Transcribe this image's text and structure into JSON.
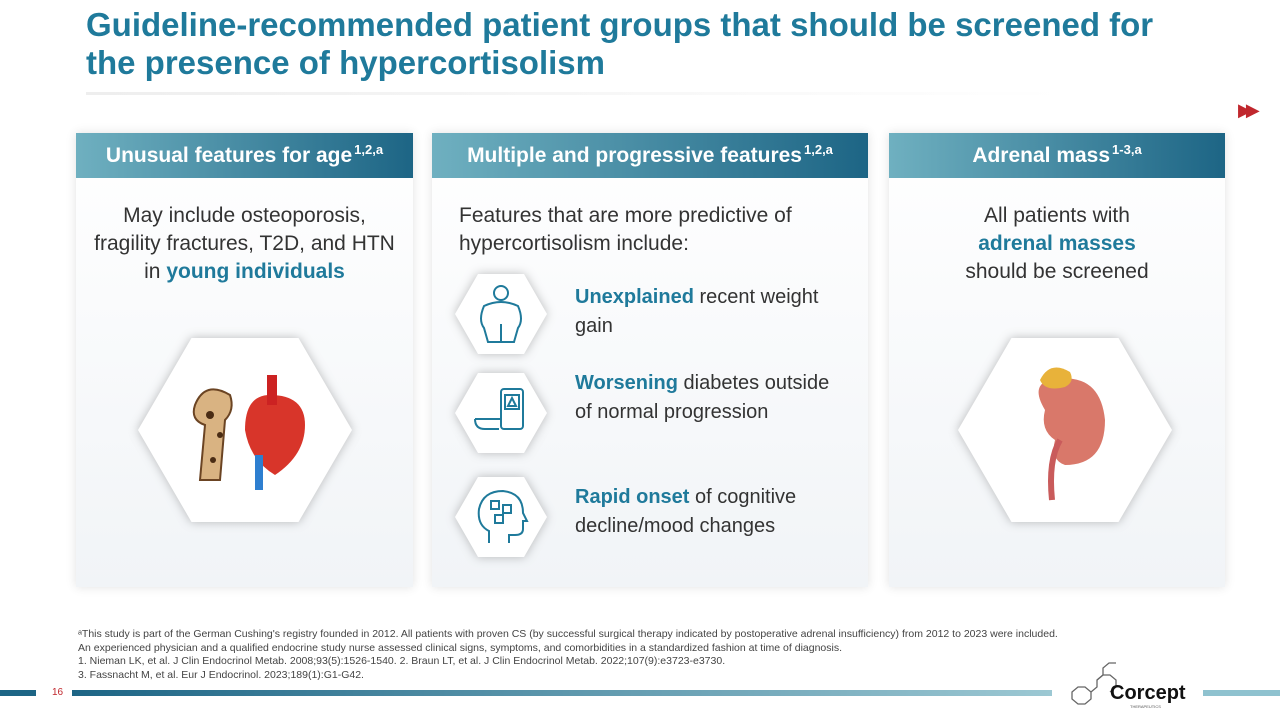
{
  "title": "Guideline-recommended patient groups that should be screened for the presence of hypercortisolism",
  "next_icon": "fast-forward-icon",
  "cards": [
    {
      "header": "Unusual features for age",
      "sup": "1,2,a",
      "text_before": "May include osteoporosis, fragility fractures, T2D, and HTN in ",
      "text_highlight": "young individuals",
      "image": "bone-and-heart-icon"
    },
    {
      "header": "Multiple and progressive features",
      "sup": "1,2,a",
      "intro": "Features that are more predictive of hypercortisolism include:",
      "features": [
        {
          "highlight": "Unexplained",
          "rest": " recent weight gain",
          "icon": "weight-gain-person-icon"
        },
        {
          "highlight": "Worsening",
          "rest": " diabetes outside of normal progression",
          "icon": "glucose-meter-icon"
        },
        {
          "highlight": "Rapid onset",
          "rest": " of cognitive decline/mood changes",
          "icon": "head-puzzle-icon"
        }
      ]
    },
    {
      "header": "Adrenal mass",
      "sup": "1-3,a",
      "line1": "All patients with",
      "highlight": "adrenal masses",
      "line3": "should be screened",
      "image": "kidney-adrenal-icon"
    }
  ],
  "footnotes": [
    "ᵃThis study is part of the German Cushing's registry founded in 2012. All patients with proven CS (by successful surgical therapy indicated by postoperative adrenal insufficiency) from 2012 to 2023 were included. An experienced physician and a qualified endocrine study nurse assessed clinical signs, symptoms, and comorbidities in a standardized fashion at time of diagnosis.",
    "1. Nieman LK, et al. J Clin Endocrinol Metab. 2008;93(5):1526-1540. 2. Braun LT, et al. J Clin Endocrinol Metab. 2022;107(9):e3723-e3730.",
    "3. Fassnacht M, et al. Eur J Endocrinol. 2023;189(1):G1-G42."
  ],
  "page_number": "16",
  "logo": {
    "name": "Corcept",
    "sub": "THERAPEUTICS"
  }
}
